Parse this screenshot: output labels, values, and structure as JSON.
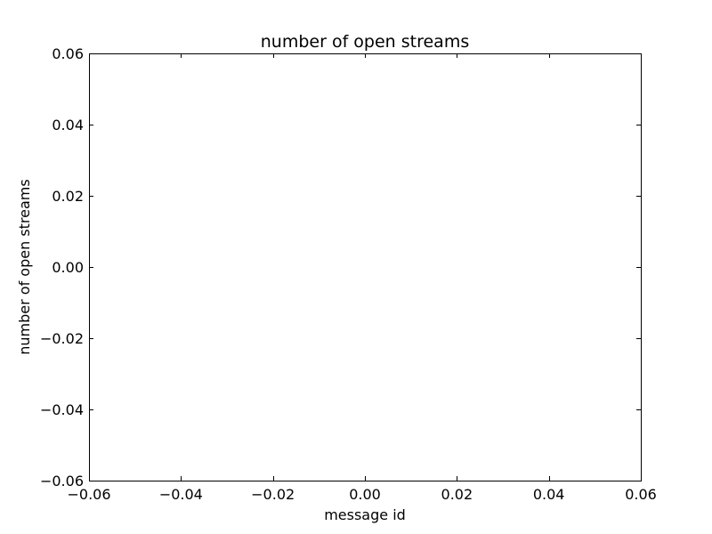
{
  "chart_data": {
    "type": "line",
    "title": "number of open streams",
    "xlabel": "message id",
    "ylabel": "number of open streams",
    "xlim": [
      -0.06,
      0.06
    ],
    "ylim": [
      -0.06,
      0.06
    ],
    "x_ticks": [
      -0.06,
      -0.04,
      -0.02,
      0.0,
      0.02,
      0.04,
      0.06
    ],
    "x_tick_labels": [
      "−0.06",
      "−0.04",
      "−0.02",
      "0.00",
      "0.02",
      "0.04",
      "0.06"
    ],
    "y_ticks": [
      -0.06,
      -0.04,
      -0.02,
      0.0,
      0.02,
      0.04,
      0.06
    ],
    "y_tick_labels": [
      "−0.06",
      "−0.04",
      "−0.02",
      "0.00",
      "0.02",
      "0.04",
      "0.06"
    ],
    "series": [],
    "grid": false,
    "legend": false
  },
  "colors": {
    "axes": "#000000",
    "background": "#ffffff"
  }
}
